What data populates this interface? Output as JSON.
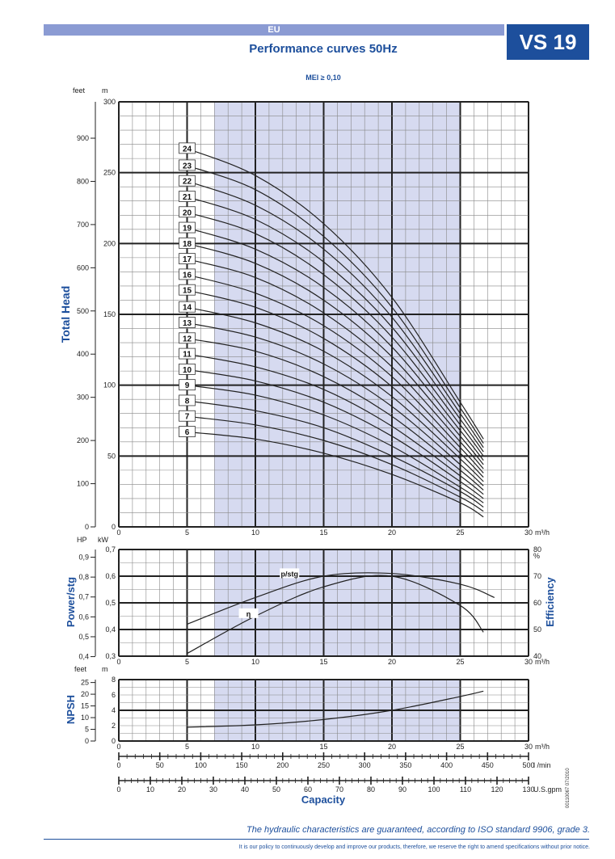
{
  "header": {
    "region": "EU",
    "model": "VS 19",
    "title": "Performance curves 50Hz",
    "mei": "MEI ≥ 0,10"
  },
  "footer": {
    "guarantee": "The hydraulic characteristics are guaranteed, according to ISO standard 9906, grade 3.",
    "policy": "It is our policy to continuously develop and improve our products, therefore, we reserve the right to amend specifications without prior notice.",
    "doc_id": "00110067 07/2010"
  },
  "colors": {
    "band": "#d6daf0",
    "brand": "#1d4f9c",
    "curve": "#222222",
    "grid": "#666666"
  },
  "chart_data": [
    {
      "type": "line",
      "ylabel": "Total Head",
      "y_unit_left": "feet",
      "y_unit_right": "m",
      "x_unit": "m³/h",
      "xlim": [
        0,
        30
      ],
      "ylim": [
        0,
        300
      ],
      "x_ticks": [
        "0",
        "5",
        "10",
        "15",
        "20",
        "25",
        "30"
      ],
      "y_ticks_m": [
        "0",
        "50",
        "100",
        "150",
        "200",
        "250",
        "300"
      ],
      "y_ticks_feet": [
        "0",
        "100",
        "200",
        "300",
        "400",
        "500",
        "600",
        "700",
        "800",
        "900"
      ],
      "recommended_range": [
        7,
        25
      ],
      "label_x": 5,
      "series": [
        {
          "name": "6",
          "x": [
            5,
            10,
            15,
            20,
            25,
            26.7
          ],
          "y": [
            67,
            62,
            52,
            37,
            17,
            7
          ]
        },
        {
          "name": "7",
          "x": [
            5,
            10,
            15,
            20,
            25,
            26.7
          ],
          "y": [
            78,
            72,
            61,
            44,
            21,
            11
          ]
        },
        {
          "name": "8",
          "x": [
            5,
            10,
            15,
            20,
            25,
            26.7
          ],
          "y": [
            89,
            82,
            70,
            50,
            25,
            14
          ]
        },
        {
          "name": "9",
          "x": [
            5,
            10,
            15,
            20,
            25,
            26.7
          ],
          "y": [
            100,
            93,
            79,
            57,
            28,
            17
          ]
        },
        {
          "name": "10",
          "x": [
            5,
            10,
            15,
            20,
            25,
            26.7
          ],
          "y": [
            111,
            103,
            88,
            64,
            32,
            20
          ]
        },
        {
          "name": "11",
          "x": [
            5,
            10,
            15,
            20,
            25,
            26.7
          ],
          "y": [
            122,
            113,
            97,
            71,
            36,
            23
          ]
        },
        {
          "name": "12",
          "x": [
            5,
            10,
            15,
            20,
            25,
            26.7
          ],
          "y": [
            133,
            124,
            106,
            78,
            40,
            26
          ]
        },
        {
          "name": "13",
          "x": [
            5,
            10,
            15,
            20,
            25,
            26.7
          ],
          "y": [
            144,
            134,
            115,
            85,
            44,
            29
          ]
        },
        {
          "name": "14",
          "x": [
            5,
            10,
            15,
            20,
            25,
            26.7
          ],
          "y": [
            155,
            144,
            124,
            92,
            48,
            32
          ]
        },
        {
          "name": "15",
          "x": [
            5,
            10,
            15,
            20,
            25,
            26.7
          ],
          "y": [
            167,
            155,
            133,
            99,
            52,
            35
          ]
        },
        {
          "name": "16",
          "x": [
            5,
            10,
            15,
            20,
            25,
            26.7
          ],
          "y": [
            178,
            165,
            142,
            106,
            56,
            38
          ]
        },
        {
          "name": "17",
          "x": [
            5,
            10,
            15,
            20,
            25,
            26.7
          ],
          "y": [
            189,
            176,
            151,
            113,
            60,
            41
          ]
        },
        {
          "name": "18",
          "x": [
            5,
            10,
            15,
            20,
            25,
            26.7
          ],
          "y": [
            200,
            186,
            160,
            120,
            64,
            44
          ]
        },
        {
          "name": "19",
          "x": [
            5,
            10,
            15,
            20,
            25,
            26.7
          ],
          "y": [
            211,
            196,
            169,
            127,
            68,
            47
          ]
        },
        {
          "name": "20",
          "x": [
            5,
            10,
            15,
            20,
            25,
            26.7
          ],
          "y": [
            222,
            207,
            178,
            134,
            72,
            50
          ]
        },
        {
          "name": "21",
          "x": [
            5,
            10,
            15,
            20,
            25,
            26.7
          ],
          "y": [
            233,
            217,
            187,
            141,
            76,
            53
          ]
        },
        {
          "name": "22",
          "x": [
            5,
            10,
            15,
            20,
            25,
            26.7
          ],
          "y": [
            244,
            227,
            196,
            148,
            80,
            56
          ]
        },
        {
          "name": "23",
          "x": [
            5,
            10,
            15,
            20,
            25,
            26.7
          ],
          "y": [
            255,
            238,
            205,
            155,
            84,
            59
          ]
        },
        {
          "name": "24",
          "x": [
            5,
            10,
            15,
            20,
            25,
            26.7
          ],
          "y": [
            267,
            248,
            214,
            162,
            88,
            62
          ]
        }
      ]
    },
    {
      "type": "line",
      "ylabel_left": "Power/stg",
      "ylabel_right": "Efficiency",
      "y_unit_left_hp": "HP",
      "y_unit_left_kw": "kW",
      "y_unit_right": "%",
      "x_unit": "m³/h",
      "xlim": [
        0,
        30
      ],
      "ylim_kw": [
        0.3,
        0.7
      ],
      "ylim_eff": [
        40,
        80
      ],
      "x_ticks": [
        "0",
        "5",
        "10",
        "15",
        "20",
        "25",
        "30"
      ],
      "y_ticks_kw": [
        "0,3",
        "0,4",
        "0,5",
        "0,6",
        "0,7"
      ],
      "y_ticks_hp": [
        "0,4",
        "0,5",
        "0,6",
        "0,7",
        "0,8",
        "0,9"
      ],
      "y_ticks_eff": [
        "40",
        "50",
        "60",
        "70",
        "80"
      ],
      "recommended_range": [
        7,
        25
      ],
      "series": [
        {
          "name": "p/stg",
          "axis": "kW",
          "x": [
            5,
            10,
            15,
            20,
            25,
            27.5
          ],
          "y": [
            0.42,
            0.52,
            0.6,
            0.61,
            0.57,
            0.52
          ],
          "label_at": [
            12.5,
            0.605
          ]
        },
        {
          "name": "η",
          "axis": "%",
          "x": [
            5,
            10,
            15,
            20,
            25,
            26.7
          ],
          "y": [
            41,
            55,
            66,
            70,
            59,
            49
          ],
          "label_at": [
            9.5,
            55.5
          ]
        }
      ]
    },
    {
      "type": "line",
      "ylabel": "NPSH",
      "y_unit_left": "feet",
      "y_unit_right": "m",
      "x_unit": "m³/h",
      "xlim": [
        0,
        30
      ],
      "ylim": [
        0,
        8
      ],
      "x_ticks": [
        "0",
        "5",
        "10",
        "15",
        "20",
        "25",
        "30"
      ],
      "y_ticks_m": [
        "0",
        "2",
        "4",
        "6",
        "8"
      ],
      "y_ticks_feet": [
        "0",
        "5",
        "10",
        "15",
        "20",
        "25"
      ],
      "recommended_range": [
        7,
        25
      ],
      "series": [
        {
          "name": "NPSH",
          "x": [
            5,
            10,
            15,
            20,
            25,
            26.7
          ],
          "y": [
            1.8,
            2.1,
            2.8,
            4.0,
            5.8,
            6.5
          ]
        }
      ]
    }
  ],
  "capacity_axes": {
    "title": "Capacity",
    "lmin": {
      "unit": "l /min",
      "max": 500,
      "ticks": [
        "0",
        "50",
        "100",
        "150",
        "200",
        "250",
        "300",
        "350",
        "400",
        "450",
        "500"
      ]
    },
    "usgpm": {
      "unit": "U.S.gpm",
      "max": 130,
      "ticks": [
        "0",
        "10",
        "20",
        "30",
        "40",
        "50",
        "60",
        "70",
        "80",
        "90",
        "100",
        "110",
        "120",
        "130"
      ]
    }
  }
}
